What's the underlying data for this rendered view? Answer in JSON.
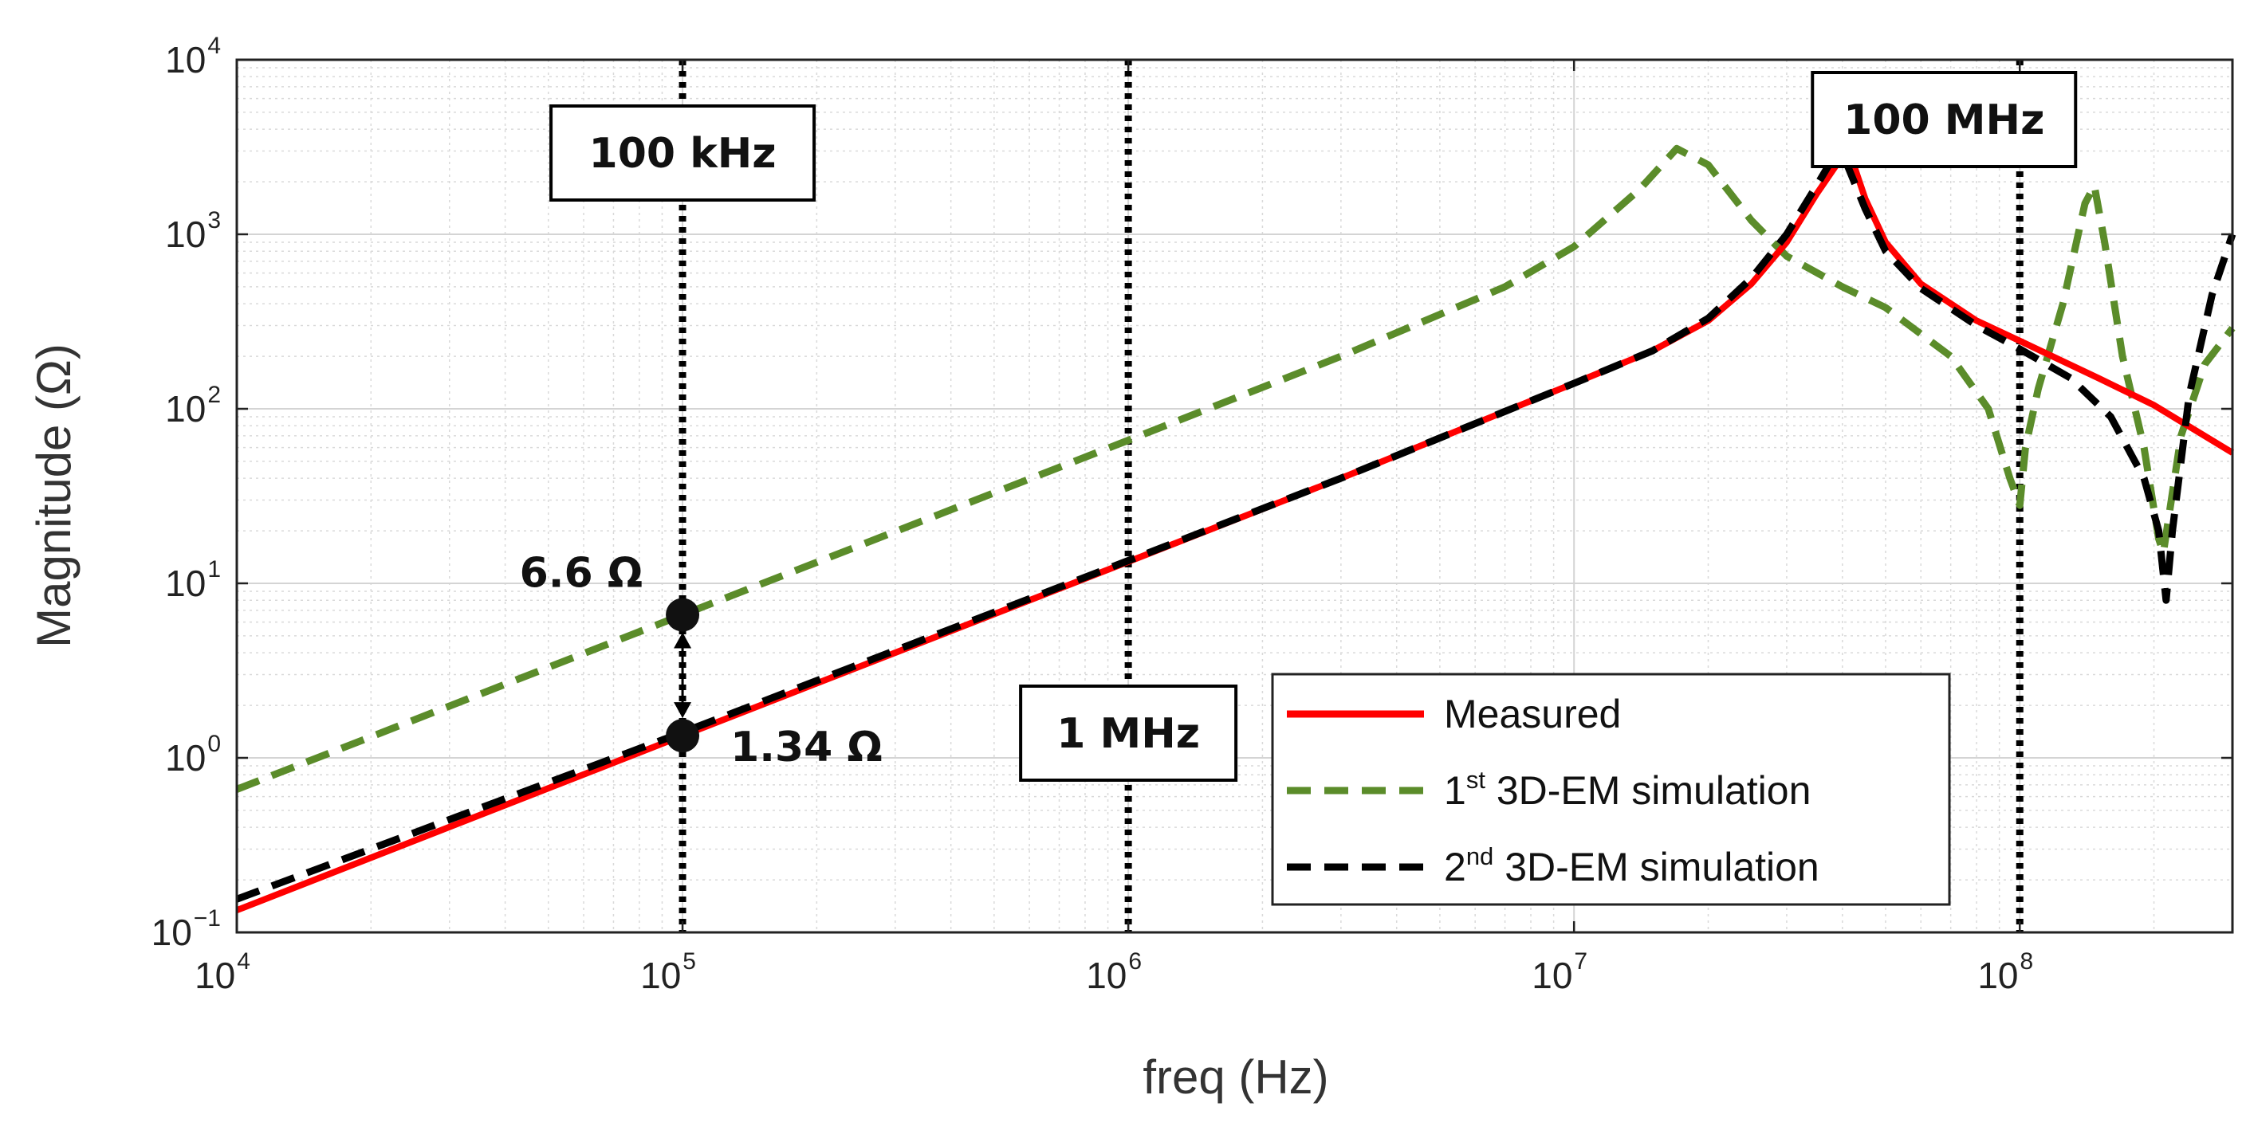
{
  "chart_data": {
    "type": "line",
    "xscale": "log",
    "yscale": "log",
    "xlabel": "freq (Hz)",
    "ylabel": "Magnitude (Ω)",
    "xlim": [
      10000,
      300000000
    ],
    "ylim": [
      0.1,
      10000
    ],
    "grid": true,
    "x_ticks": [
      {
        "base": "10",
        "exp": "4",
        "value": 10000
      },
      {
        "base": "10",
        "exp": "5",
        "value": 100000
      },
      {
        "base": "10",
        "exp": "6",
        "value": 1000000
      },
      {
        "base": "10",
        "exp": "7",
        "value": 10000000
      },
      {
        "base": "10",
        "exp": "8",
        "value": 100000000
      }
    ],
    "y_ticks": [
      {
        "base": "10",
        "exp": "−1",
        "value": 0.1
      },
      {
        "base": "10",
        "exp": "0",
        "value": 1
      },
      {
        "base": "10",
        "exp": "1",
        "value": 10
      },
      {
        "base": "10",
        "exp": "2",
        "value": 100
      },
      {
        "base": "10",
        "exp": "3",
        "value": 1000
      },
      {
        "base": "10",
        "exp": "4",
        "value": 10000
      }
    ],
    "series": [
      {
        "name": "Measured",
        "legend_pre": "Measured",
        "legend_sup": "",
        "legend_post": "",
        "color": "#ff0000",
        "style": "solid",
        "points": [
          [
            10000,
            0.134
          ],
          [
            100000,
            1.34
          ],
          [
            1000000,
            13.3
          ],
          [
            3000000,
            40
          ],
          [
            10000000,
            140
          ],
          [
            15000000,
            215
          ],
          [
            20000000,
            320
          ],
          [
            25000000,
            520
          ],
          [
            30000000,
            900
          ],
          [
            35000000,
            1700
          ],
          [
            40000000,
            2800
          ],
          [
            42000000,
            2700
          ],
          [
            45000000,
            1600
          ],
          [
            50000000,
            900
          ],
          [
            60000000,
            520
          ],
          [
            80000000,
            320
          ],
          [
            100000000,
            245
          ],
          [
            150000000,
            150
          ],
          [
            200000000,
            105
          ],
          [
            300000000,
            56
          ]
        ]
      },
      {
        "name": "1st 3D-EM simulation",
        "legend_pre": "1",
        "legend_sup": "st",
        "legend_post": " 3D-EM simulation",
        "color": "#5b8c2a",
        "style": "dashed",
        "points": [
          [
            10000,
            0.66
          ],
          [
            100000,
            6.6
          ],
          [
            1000000,
            66
          ],
          [
            3000000,
            200
          ],
          [
            7000000,
            500
          ],
          [
            10000000,
            850
          ],
          [
            14000000,
            1800
          ],
          [
            17000000,
            3100
          ],
          [
            20000000,
            2500
          ],
          [
            25000000,
            1200
          ],
          [
            30000000,
            750
          ],
          [
            40000000,
            500
          ],
          [
            50000000,
            380
          ],
          [
            70000000,
            200
          ],
          [
            85000000,
            100
          ],
          [
            95000000,
            40
          ],
          [
            100000000,
            28
          ],
          [
            103000000,
            60
          ],
          [
            110000000,
            130
          ],
          [
            125000000,
            400
          ],
          [
            140000000,
            1500
          ],
          [
            147000000,
            1900
          ],
          [
            155000000,
            900
          ],
          [
            170000000,
            200
          ],
          [
            190000000,
            60
          ],
          [
            205000000,
            18
          ],
          [
            210000000,
            15
          ],
          [
            230000000,
            70
          ],
          [
            260000000,
            180
          ],
          [
            300000000,
            290
          ]
        ]
      },
      {
        "name": "2nd 3D-EM simulation",
        "legend_pre": "2",
        "legend_sup": "nd",
        "legend_post": " 3D-EM simulation",
        "color": "#000000",
        "style": "dashed",
        "points": [
          [
            10000,
            0.155
          ],
          [
            100000,
            1.4
          ],
          [
            1000000,
            13.5
          ],
          [
            3000000,
            40
          ],
          [
            10000000,
            140
          ],
          [
            15000000,
            215
          ],
          [
            20000000,
            330
          ],
          [
            25000000,
            560
          ],
          [
            30000000,
            1000
          ],
          [
            35000000,
            1900
          ],
          [
            38000000,
            2700
          ],
          [
            41000000,
            2500
          ],
          [
            45000000,
            1400
          ],
          [
            50000000,
            800
          ],
          [
            60000000,
            490
          ],
          [
            80000000,
            300
          ],
          [
            100000000,
            220
          ],
          [
            130000000,
            150
          ],
          [
            160000000,
            90
          ],
          [
            190000000,
            40
          ],
          [
            205000000,
            20
          ],
          [
            213000000,
            8
          ],
          [
            220000000,
            20
          ],
          [
            240000000,
            120
          ],
          [
            270000000,
            450
          ],
          [
            300000000,
            1000
          ]
        ]
      }
    ],
    "vlines": [
      100000,
      1000000,
      100000000
    ],
    "markers": [
      {
        "label": "100 kHz",
        "freq": 100000
      },
      {
        "label": "1 MHz",
        "freq": 1000000
      },
      {
        "label": "100 MHz",
        "freq": 100000000
      }
    ],
    "annotations": [
      {
        "label": "6.6 Ω",
        "x": 100000,
        "y": 6.6
      },
      {
        "label": "1.34 Ω",
        "x": 100000,
        "y": 1.34
      }
    ],
    "legend_position": "bottom-right"
  }
}
